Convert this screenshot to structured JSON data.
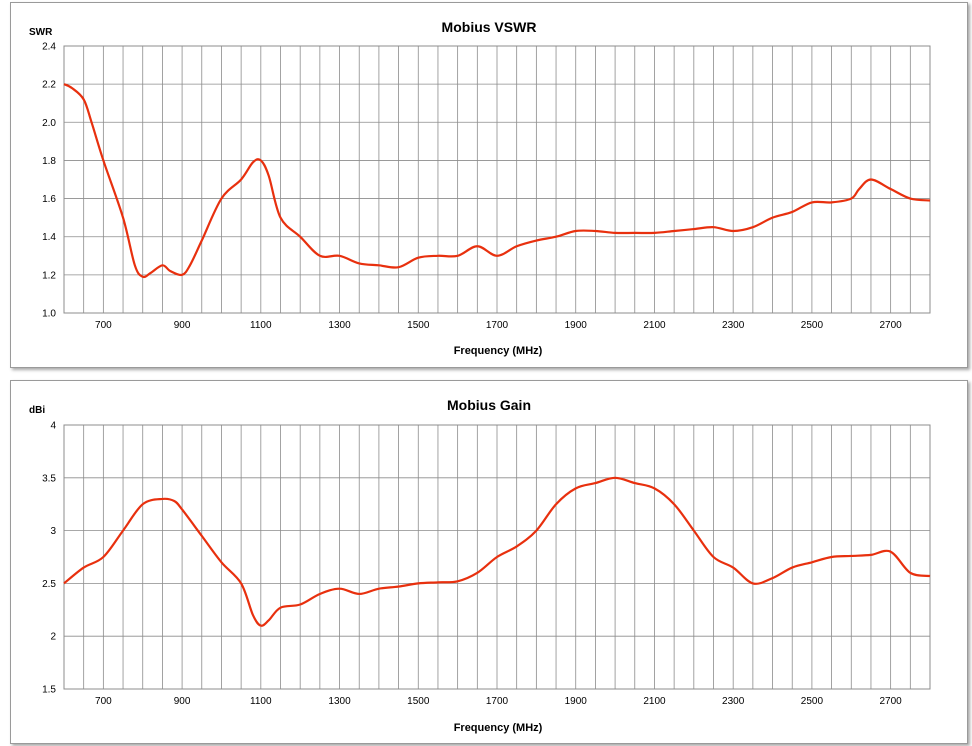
{
  "chart_data": [
    {
      "type": "line",
      "title": "Mobius VSWR",
      "ylabel": "SWR",
      "xlabel": "Frequency (MHz)",
      "xlim": [
        600,
        2800
      ],
      "ylim": [
        1.0,
        2.4
      ],
      "yticks": [
        "1.0",
        "1.2",
        "1.4",
        "1.6",
        "1.8",
        "2.0",
        "2.2",
        "2.4"
      ],
      "xticks": [
        "700",
        "900",
        "1100",
        "1300",
        "1500",
        "1700",
        "1900",
        "2100",
        "2300",
        "2500",
        "2700"
      ],
      "grid": true,
      "line_color": "#e8300e",
      "series": [
        {
          "x": [
            600,
            620,
            650,
            670,
            700,
            750,
            780,
            800,
            820,
            850,
            870,
            900,
            920,
            950,
            1000,
            1050,
            1080,
            1100,
            1120,
            1150,
            1200,
            1250,
            1300,
            1350,
            1400,
            1450,
            1500,
            1550,
            1600,
            1650,
            1700,
            1750,
            1800,
            1850,
            1900,
            1950,
            2000,
            2050,
            2100,
            2150,
            2200,
            2250,
            2300,
            2350,
            2400,
            2450,
            2500,
            2550,
            2600,
            2620,
            2650,
            2700,
            2750,
            2800
          ],
          "y": [
            2.2,
            2.18,
            2.12,
            2.0,
            1.8,
            1.5,
            1.25,
            1.19,
            1.21,
            1.25,
            1.22,
            1.2,
            1.25,
            1.38,
            1.6,
            1.7,
            1.79,
            1.8,
            1.72,
            1.5,
            1.4,
            1.3,
            1.3,
            1.26,
            1.25,
            1.24,
            1.29,
            1.3,
            1.3,
            1.35,
            1.3,
            1.35,
            1.38,
            1.4,
            1.43,
            1.43,
            1.42,
            1.42,
            1.42,
            1.43,
            1.44,
            1.45,
            1.43,
            1.45,
            1.5,
            1.53,
            1.58,
            1.58,
            1.6,
            1.65,
            1.7,
            1.65,
            1.6,
            1.59
          ]
        }
      ]
    },
    {
      "type": "line",
      "title": "Mobius Gain",
      "ylabel": "dBi",
      "xlabel": "Frequency (MHz)",
      "xlim": [
        600,
        2800
      ],
      "ylim": [
        1.5,
        4.0
      ],
      "yticks": [
        "1.5",
        "2",
        "2.5",
        "3",
        "3.5",
        "4"
      ],
      "xticks": [
        "700",
        "900",
        "1100",
        "1300",
        "1500",
        "1700",
        "1900",
        "2100",
        "2300",
        "2500",
        "2700"
      ],
      "grid": true,
      "line_color": "#e8300e",
      "series": [
        {
          "x": [
            600,
            650,
            700,
            750,
            800,
            850,
            880,
            900,
            950,
            1000,
            1050,
            1080,
            1100,
            1120,
            1150,
            1200,
            1250,
            1300,
            1350,
            1400,
            1450,
            1500,
            1550,
            1600,
            1650,
            1700,
            1750,
            1800,
            1850,
            1900,
            1950,
            2000,
            2050,
            2100,
            2150,
            2200,
            2250,
            2300,
            2350,
            2400,
            2450,
            2500,
            2550,
            2600,
            2650,
            2700,
            2750,
            2800
          ],
          "y": [
            2.5,
            2.65,
            2.75,
            3.0,
            3.25,
            3.3,
            3.28,
            3.2,
            2.95,
            2.7,
            2.5,
            2.2,
            2.1,
            2.15,
            2.27,
            2.3,
            2.4,
            2.45,
            2.4,
            2.45,
            2.47,
            2.5,
            2.51,
            2.52,
            2.6,
            2.75,
            2.85,
            3.0,
            3.25,
            3.4,
            3.45,
            3.5,
            3.45,
            3.4,
            3.25,
            3.0,
            2.75,
            2.65,
            2.5,
            2.55,
            2.65,
            2.7,
            2.75,
            2.76,
            2.77,
            2.8,
            2.6,
            2.57
          ]
        }
      ]
    }
  ]
}
